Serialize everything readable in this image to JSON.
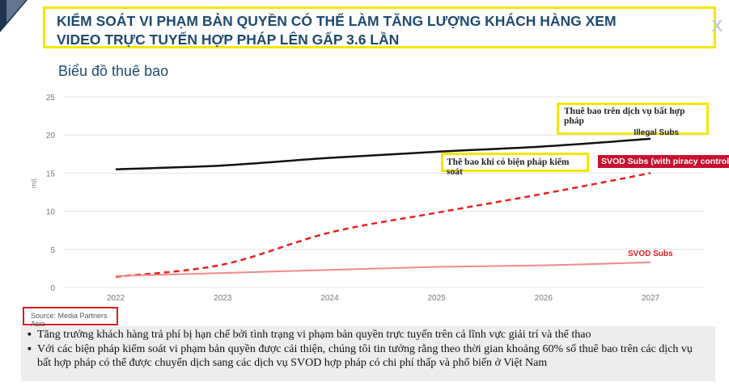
{
  "header": {
    "title_line1": "KIỂM SOÁT VI PHẠM BẢN QUYỀN CÓ THỂ LÀM TĂNG LƯỢNG KHÁCH HÀNG XEM",
    "title_line2": "VIDEO TRỰC TUYẾN HỢP PHÁP LÊN GẤP 3.6 LẦN",
    "brand_mark": "X"
  },
  "chart_title": "Biểu đồ thuê bao",
  "chart_data": {
    "type": "line",
    "ylabel": "mil.",
    "ylim": [
      0,
      25
    ],
    "yticks": [
      0,
      5,
      10,
      15,
      20,
      25
    ],
    "x": [
      "2022",
      "2023",
      "2024",
      "2025",
      "2026",
      "2027"
    ],
    "series": [
      {
        "name": "Illegal Subs",
        "values": [
          15.5,
          16.0,
          17.0,
          17.8,
          18.5,
          19.5
        ],
        "color": "#111111",
        "style": "solid"
      },
      {
        "name": "SVOD Subs (with piracy control)",
        "values": [
          1.4,
          3.0,
          7.2,
          9.8,
          12.3,
          15.0
        ],
        "color": "#e8201f",
        "style": "dashed"
      },
      {
        "name": "SVOD Subs",
        "values": [
          1.5,
          1.9,
          2.3,
          2.7,
          2.9,
          3.3
        ],
        "color": "#f08a8a",
        "style": "solid"
      }
    ]
  },
  "annotations": {
    "illegal_vn": "Thuê bao trên dịch vụ bất hợp pháp",
    "illegal_label": "Illegal Subs",
    "svod_control_vn": "Thê bao khi có biện pháp kiểm soát",
    "svod_control_label": "SVOD Subs (with piracy control)",
    "svod_label": "SVOD Subs"
  },
  "source": "Source: Media Partners Asia",
  "notes": [
    "Tăng trưởng khách hàng trả phí bị hạn chế bởi tình trạng vi phạm bản quyền trực tuyến trên cả lĩnh vực giải trí và thể thao",
    "Với các biện pháp kiểm soát vi phạm bản quyền được cải thiện, chúng tôi tin tưởng rằng theo thời gian khoảng 60% số thuê bao trên các dịch vụ bất hợp pháp có thể được chuyển dịch sang các dịch vụ SVOD hợp pháp có chi phí thấp và phổ biến ở Việt Nam"
  ],
  "bullet_char": "▪"
}
